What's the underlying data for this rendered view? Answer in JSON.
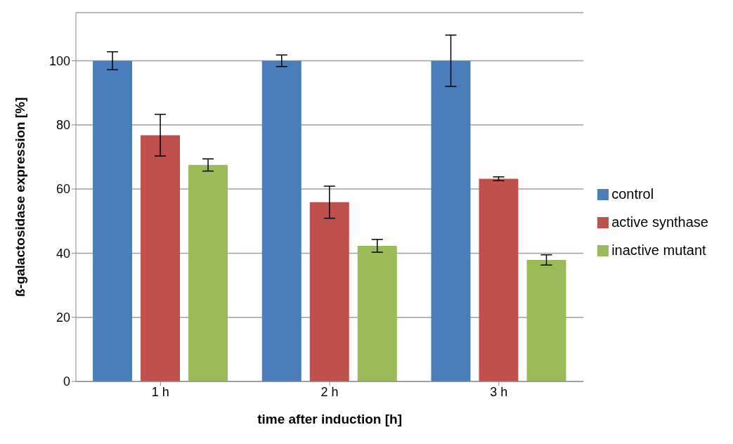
{
  "chart_data": {
    "type": "bar",
    "xlabel": "time after induction [h]",
    "ylabel": "ß-galactosidase expression [%]",
    "categories": [
      "1 h",
      "2 h",
      "3 h"
    ],
    "series": [
      {
        "name": "control",
        "color": "#4a7ebb",
        "values": [
          100,
          100,
          100
        ],
        "errors": [
          2.8,
          1.8,
          8
        ]
      },
      {
        "name": "active synthase",
        "color": "#c0504d",
        "values": [
          76.8,
          55.9,
          63.2
        ],
        "errors": [
          6.5,
          5,
          0.6
        ]
      },
      {
        "name": "inactive mutant",
        "color": "#9bbb59",
        "values": [
          67.5,
          42.3,
          37.9
        ],
        "errors": [
          1.9,
          2,
          1.6
        ]
      }
    ],
    "ylim": [
      0,
      115
    ],
    "yticks": [
      0,
      20,
      40,
      60,
      80,
      100
    ],
    "grid": "y",
    "legend": "right"
  }
}
